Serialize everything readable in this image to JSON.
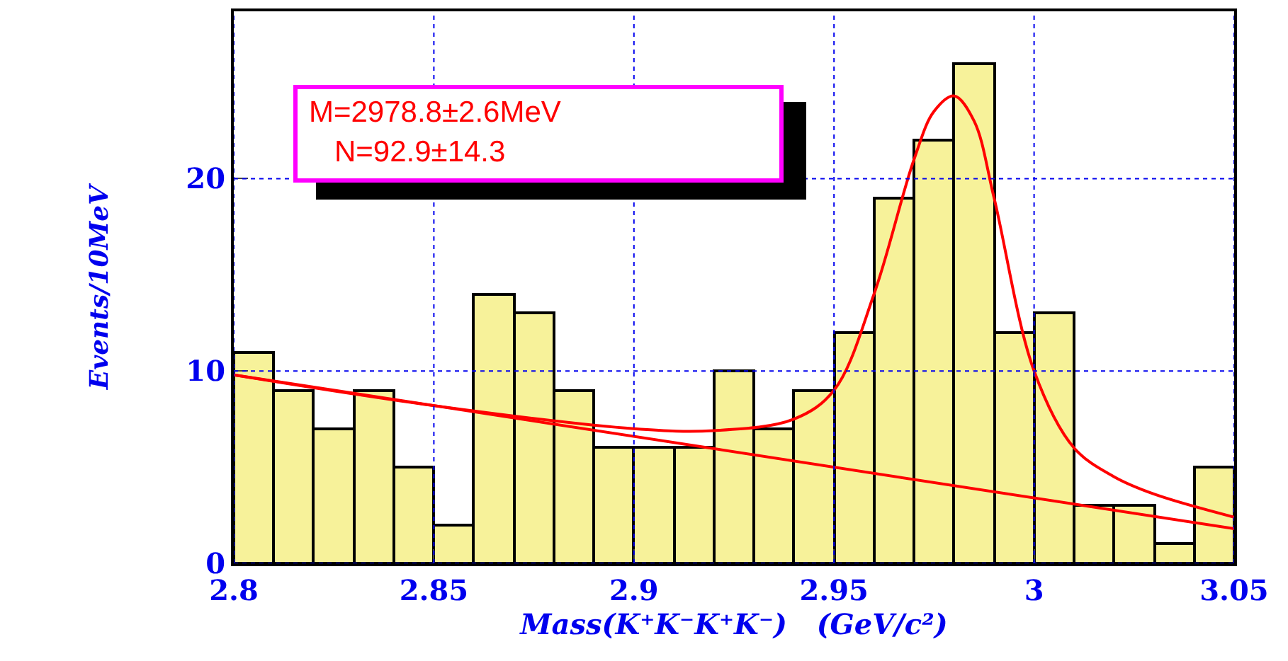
{
  "chart_data": {
    "type": "histogram",
    "xlabel": "Mass(K⁺K⁻K⁺K⁻)   (GeV/c²)",
    "ylabel": "Events/10MeV",
    "bins": [
      2.8,
      2.81,
      2.82,
      2.83,
      2.84,
      2.85,
      2.86,
      2.87,
      2.88,
      2.89,
      2.9,
      2.91,
      2.92,
      2.93,
      2.94,
      2.95,
      2.96,
      2.97,
      2.98,
      2.99,
      3.0,
      3.01,
      3.02,
      3.03,
      3.04,
      3.05
    ],
    "values": [
      11,
      9,
      7,
      9,
      5,
      2,
      14,
      13,
      9,
      6,
      6,
      6,
      10,
      7,
      9,
      12,
      19,
      22,
      26,
      12,
      13,
      3,
      3,
      1,
      5
    ],
    "color": "#f7f29a",
    "series": [
      {
        "type": "line",
        "color": "#ff0000",
        "x": [
          2.8,
          2.85,
          2.9,
          2.92,
          2.94,
          2.95,
          2.96,
          2.97,
          2.975,
          2.98,
          2.985,
          2.99,
          3.0,
          3.01,
          3.02,
          3.03,
          3.05
        ],
        "values": [
          9.8,
          8.2,
          7.0,
          6.9,
          7.5,
          9,
          14,
          21,
          23.5,
          24.3,
          23,
          19,
          10,
          6,
          4.5,
          3.6,
          2.4
        ]
      },
      {
        "type": "line",
        "color": "#ff0000",
        "x": [
          2.8,
          3.05
        ],
        "values": [
          9.8,
          1.8
        ]
      }
    ],
    "annotations": [
      "M=2978.8±2.6MeV",
      "N=92.9±14.3"
    ],
    "xlim": [
      2.8,
      3.05
    ],
    "xticks": [
      2.8,
      2.85,
      2.9,
      2.95,
      3,
      3.05
    ],
    "ylim": [
      0,
      28.7
    ],
    "yticks": [
      0,
      10,
      20
    ],
    "grid": true
  }
}
